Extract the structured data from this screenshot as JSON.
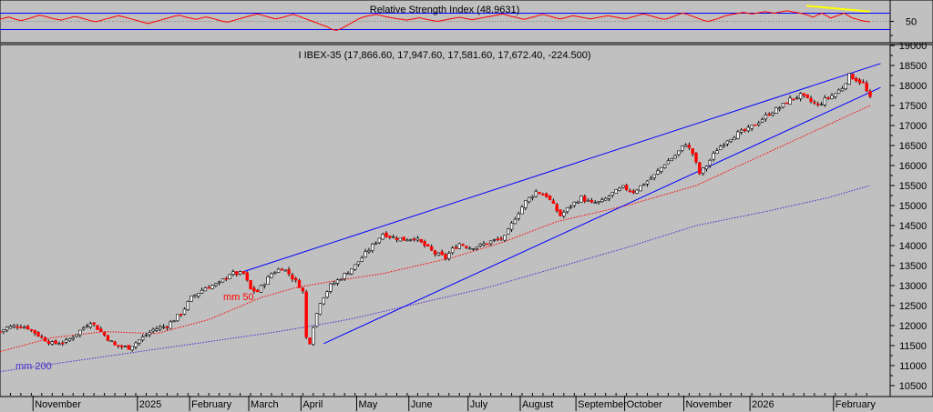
{
  "chart_data": [
    {
      "type": "line",
      "panel": "indicator",
      "title": "Relative Strength Index (48.9631)",
      "ylim": [
        0,
        100
      ],
      "y_ticks": [
        50
      ],
      "reference_lines": [
        70,
        30
      ],
      "trend_color": "#ffff00",
      "series": [
        {
          "color": "#ff0000",
          "values": [
            55,
            58,
            61,
            57,
            54,
            52,
            55,
            58,
            62,
            65,
            63,
            60,
            57,
            55,
            53,
            56,
            59,
            62,
            60,
            57,
            54,
            51,
            49,
            52,
            55,
            58,
            61,
            64,
            62,
            59,
            56,
            53,
            50,
            47,
            45,
            48,
            51,
            54,
            57,
            60,
            63,
            65,
            62,
            59,
            57,
            55,
            58,
            61,
            59,
            56,
            53,
            50,
            48,
            51,
            54,
            57,
            60,
            63,
            66,
            68,
            65,
            62,
            59,
            56,
            58,
            61,
            64,
            67,
            64,
            60,
            56,
            52,
            48,
            44,
            40,
            36,
            30,
            28,
            32,
            38,
            44,
            50,
            56,
            60,
            63,
            65,
            67,
            65,
            62,
            60,
            58,
            56,
            55,
            53,
            55,
            57,
            59,
            56,
            54,
            52,
            50,
            52,
            54,
            56,
            58,
            60,
            58,
            56,
            54,
            56,
            58,
            60,
            62,
            64,
            66,
            68,
            65,
            62,
            60,
            57,
            55,
            58,
            61,
            64,
            67,
            65,
            62,
            59,
            56,
            58,
            61,
            64,
            62,
            60,
            58,
            56,
            58,
            60,
            62,
            64,
            62,
            60,
            58,
            56,
            59,
            62,
            65,
            68,
            66,
            63,
            60,
            57,
            55,
            58,
            62,
            66,
            70,
            68,
            64,
            60,
            56,
            52,
            50,
            53,
            56,
            60,
            64,
            66,
            68,
            70,
            72,
            70,
            68,
            70,
            72,
            74,
            72,
            70,
            72,
            74,
            76,
            74,
            72,
            70,
            68,
            64,
            60,
            66,
            70,
            64,
            58,
            62,
            66,
            70,
            64,
            58,
            55,
            52,
            50,
            49
          ]
        }
      ]
    },
    {
      "type": "candlestick",
      "panel": "price",
      "title": "I IBEX-35 (17,866.60, 17,947.60, 17,581.60, 17,672.40, -224.500)",
      "ylim": [
        10250,
        19000
      ],
      "y_ticks": [
        10500,
        11000,
        11500,
        12000,
        12500,
        13000,
        13500,
        14000,
        14500,
        15000,
        15500,
        16000,
        16500,
        17000,
        17500,
        18000,
        18500,
        19000
      ],
      "y_tick_labels": [
        "10500",
        "11000",
        "11500",
        "12000",
        "12500",
        "13000",
        "13500",
        "14000",
        "14500",
        "15000",
        "15500",
        "16000",
        "16500",
        "17000",
        "17500",
        "18000",
        "18500",
        "19000"
      ],
      "x_labels": [
        "November",
        "2025",
        "February",
        "March",
        "April",
        "May",
        "June",
        "July",
        "August",
        "September",
        "October",
        "November",
        "2026",
        "February"
      ],
      "up_color": "#ffffff",
      "down_color": "#ff0000",
      "close_path": [
        [
          0,
          11850
        ],
        [
          2,
          11950
        ],
        [
          5,
          12000
        ],
        [
          8,
          11950
        ],
        [
          12,
          11700
        ],
        [
          15,
          11550
        ],
        [
          19,
          11600
        ],
        [
          22,
          11800
        ],
        [
          26,
          12100
        ],
        [
          29,
          11850
        ],
        [
          33,
          11500
        ],
        [
          37,
          11450
        ],
        [
          41,
          11700
        ],
        [
          44,
          11900
        ],
        [
          48,
          12000
        ],
        [
          52,
          12300
        ],
        [
          55,
          12700
        ],
        [
          59,
          12950
        ],
        [
          63,
          13050
        ],
        [
          66,
          13300
        ],
        [
          70,
          13300
        ],
        [
          72,
          12900
        ],
        [
          74,
          12850
        ],
        [
          78,
          13300
        ],
        [
          81,
          13450
        ],
        [
          83,
          13300
        ],
        [
          86,
          13000
        ],
        [
          87,
          12850
        ],
        [
          88,
          11700
        ],
        [
          89,
          11600
        ],
        [
          90,
          12000
        ],
        [
          92,
          12600
        ],
        [
          95,
          13000
        ],
        [
          98,
          13200
        ],
        [
          102,
          13500
        ],
        [
          105,
          13800
        ],
        [
          108,
          14100
        ],
        [
          110,
          14300
        ],
        [
          113,
          14200
        ],
        [
          116,
          14150
        ],
        [
          119,
          14200
        ],
        [
          122,
          14000
        ],
        [
          125,
          13800
        ],
        [
          128,
          13700
        ],
        [
          130,
          13900
        ],
        [
          132,
          14050
        ],
        [
          135,
          13950
        ],
        [
          138,
          14000
        ],
        [
          141,
          14100
        ],
        [
          145,
          14200
        ],
        [
          148,
          14700
        ],
        [
          151,
          15100
        ],
        [
          154,
          15350
        ],
        [
          157,
          15250
        ],
        [
          159,
          15000
        ],
        [
          161,
          14750
        ],
        [
          164,
          15000
        ],
        [
          167,
          15200
        ],
        [
          170,
          15050
        ],
        [
          173,
          15100
        ],
        [
          176,
          15300
        ],
        [
          179,
          15450
        ],
        [
          182,
          15350
        ],
        [
          185,
          15550
        ],
        [
          188,
          15750
        ],
        [
          191,
          16050
        ],
        [
          194,
          16250
        ],
        [
          197,
          16550
        ],
        [
          199,
          16300
        ],
        [
          201,
          15800
        ],
        [
          203,
          16000
        ],
        [
          206,
          16400
        ],
        [
          209,
          16650
        ],
        [
          212,
          16800
        ],
        [
          215,
          16900
        ],
        [
          218,
          17100
        ],
        [
          221,
          17300
        ],
        [
          224,
          17450
        ],
        [
          227,
          17650
        ],
        [
          230,
          17750
        ],
        [
          233,
          17600
        ],
        [
          235,
          17500
        ],
        [
          237,
          17650
        ],
        [
          240,
          17800
        ],
        [
          242,
          17950
        ],
        [
          244,
          18250
        ],
        [
          246,
          18150
        ],
        [
          248,
          18050
        ],
        [
          249,
          17850
        ],
        [
          250,
          17672
        ]
      ],
      "moving_averages": [
        {
          "name": "mm 50",
          "color": "#ff0000",
          "style": "dotted",
          "points": [
            [
              0,
              11350
            ],
            [
              15,
              11700
            ],
            [
              30,
              11850
            ],
            [
              45,
              11800
            ],
            [
              60,
              12150
            ],
            [
              75,
              12700
            ],
            [
              85,
              12950
            ],
            [
              95,
              13100
            ],
            [
              110,
              13300
            ],
            [
              130,
              13700
            ],
            [
              145,
              14100
            ],
            [
              160,
              14600
            ],
            [
              180,
              15000
            ],
            [
              200,
              15500
            ],
            [
              215,
              16100
            ],
            [
              230,
              16700
            ],
            [
              240,
              17100
            ],
            [
              250,
              17500
            ]
          ]
        },
        {
          "name": "mm 200",
          "color": "#4b2ccc",
          "style": "dotted",
          "points": [
            [
              0,
              10850
            ],
            [
              20,
              11100
            ],
            [
              40,
              11350
            ],
            [
              60,
              11600
            ],
            [
              80,
              11850
            ],
            [
              100,
              12150
            ],
            [
              120,
              12550
            ],
            [
              140,
              12950
            ],
            [
              160,
              13450
            ],
            [
              180,
              13950
            ],
            [
              200,
              14500
            ],
            [
              220,
              14850
            ],
            [
              238,
              15200
            ],
            [
              250,
              15500
            ]
          ]
        }
      ],
      "trend_lines": [
        {
          "color": "#0000ff",
          "from": [
            70,
            13350
          ],
          "to": [
            253,
            18550
          ]
        },
        {
          "color": "#0000ff",
          "from": [
            93,
            11550
          ],
          "to": [
            253,
            17950
          ]
        }
      ]
    }
  ]
}
